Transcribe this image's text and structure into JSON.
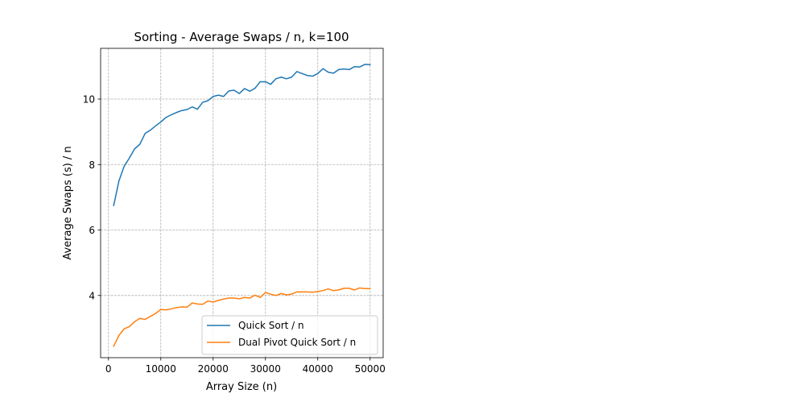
{
  "chart_data": {
    "type": "line",
    "title": "Sorting - Average Swaps / n, k=100",
    "xlabel": "Array Size (n)",
    "ylabel": "Average Swaps (s) / n",
    "xlim": [
      -1500,
      52500
    ],
    "ylim": [
      2.1,
      11.55
    ],
    "xticks": [
      0,
      10000,
      20000,
      30000,
      40000,
      50000
    ],
    "yticks": [
      4,
      6,
      8,
      10
    ],
    "grid": true,
    "legend_position": "lower right",
    "x": [
      1000,
      2000,
      3000,
      4000,
      5000,
      6000,
      7000,
      8000,
      9000,
      10000,
      11000,
      12000,
      13000,
      14000,
      15000,
      16000,
      17000,
      18000,
      19000,
      20000,
      21000,
      22000,
      23000,
      24000,
      25000,
      26000,
      27000,
      28000,
      29000,
      30000,
      31000,
      32000,
      33000,
      34000,
      35000,
      36000,
      37000,
      38000,
      39000,
      40000,
      41000,
      42000,
      43000,
      44000,
      45000,
      46000,
      47000,
      48000,
      49000,
      50000
    ],
    "series": [
      {
        "name": "Quick Sort / n",
        "color": "#1f77b4",
        "values": [
          6.75,
          7.5,
          7.95,
          8.2,
          8.48,
          8.62,
          8.95,
          9.05,
          9.18,
          9.3,
          9.44,
          9.52,
          9.59,
          9.65,
          9.68,
          9.76,
          9.69,
          9.9,
          9.95,
          10.08,
          10.12,
          10.08,
          10.25,
          10.27,
          10.17,
          10.32,
          10.24,
          10.33,
          10.53,
          10.53,
          10.45,
          10.62,
          10.67,
          10.62,
          10.67,
          10.84,
          10.78,
          10.72,
          10.7,
          10.78,
          10.93,
          10.82,
          10.79,
          10.9,
          10.92,
          10.9,
          10.99,
          10.98,
          11.06,
          11.05
        ]
      },
      {
        "name": "Dual Pivot Quick Sort / n",
        "color": "#ff7f0e",
        "values": [
          2.45,
          2.78,
          2.98,
          3.05,
          3.2,
          3.3,
          3.27,
          3.36,
          3.45,
          3.57,
          3.56,
          3.59,
          3.63,
          3.65,
          3.64,
          3.77,
          3.74,
          3.73,
          3.83,
          3.8,
          3.85,
          3.89,
          3.92,
          3.92,
          3.9,
          3.94,
          3.92,
          4.01,
          3.94,
          4.09,
          4.04,
          4.0,
          4.06,
          4.02,
          4.04,
          4.11,
          4.11,
          4.11,
          4.1,
          4.12,
          4.15,
          4.2,
          4.15,
          4.17,
          4.22,
          4.22,
          4.17,
          4.23,
          4.21,
          4.21
        ]
      }
    ]
  }
}
